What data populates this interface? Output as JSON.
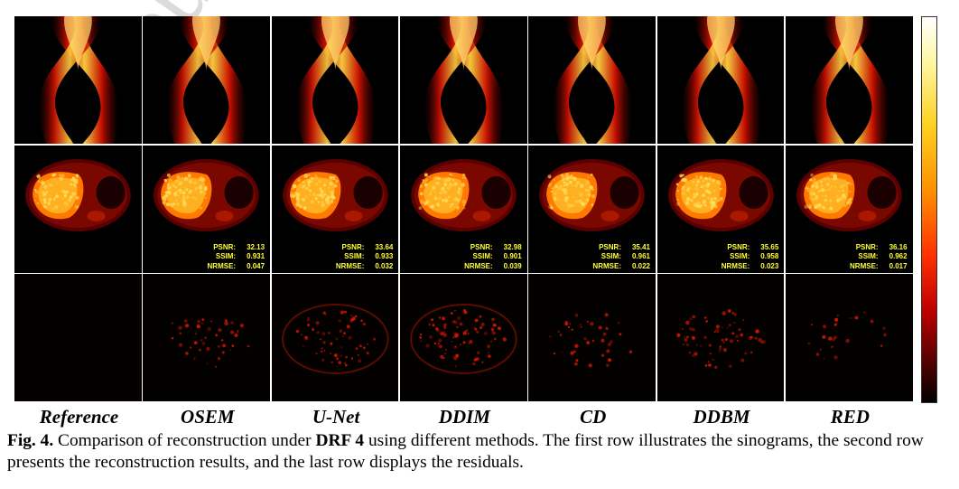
{
  "figure": {
    "methods": [
      "Reference",
      "OSEM",
      "U-Net",
      "DDIM",
      "CD",
      "DDBM",
      "RED"
    ],
    "rows": [
      "sinogram",
      "reconstruction",
      "residual"
    ],
    "metrics": [
      null,
      {
        "psnr": "32.13",
        "ssim": "0.931",
        "nrmse": "0.047"
      },
      {
        "psnr": "33.64",
        "ssim": "0.933",
        "nrmse": "0.032"
      },
      {
        "psnr": "32.98",
        "ssim": "0.901",
        "nrmse": "0.039"
      },
      {
        "psnr": "35.41",
        "ssim": "0.961",
        "nrmse": "0.022"
      },
      {
        "psnr": "35.65",
        "ssim": "0.958",
        "nrmse": "0.023"
      },
      {
        "psnr": "36.16",
        "ssim": "0.962",
        "nrmse": "0.017"
      }
    ],
    "metric_labels": {
      "psnr": "PSNR:",
      "ssim": "SSIM:",
      "nrmse": "NRMSE:"
    },
    "colormap": "hot",
    "colorbar_orientation": "vertical"
  },
  "caption": {
    "label": "Fig. 4.",
    "text_before": " Comparison of reconstruction under ",
    "bold": "DRF 4",
    "text_after": " using different methods. The first row illustrates the sinograms, the second row presents the reconstruction results, and the last row displays the residuals."
  },
  "watermark": "Journal"
}
